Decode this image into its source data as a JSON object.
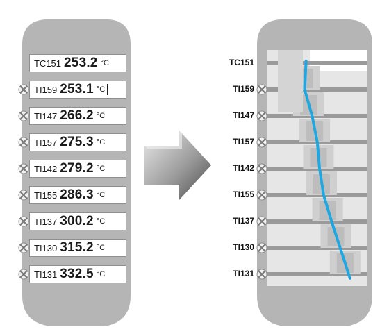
{
  "left_panel": {
    "readouts": [
      {
        "tag": "TC151",
        "value": "253.2",
        "unit": "°C",
        "nozzle": false
      },
      {
        "tag": "TI159",
        "value": "253.1",
        "unit": "°C",
        "nozzle": true
      },
      {
        "tag": "TI147",
        "value": "266.2",
        "unit": "°C",
        "nozzle": true
      },
      {
        "tag": "TI157",
        "value": "275.3",
        "unit": "°C",
        "nozzle": true
      },
      {
        "tag": "TI142",
        "value": "279.2",
        "unit": "°C",
        "nozzle": true
      },
      {
        "tag": "TI155",
        "value": "286.3",
        "unit": "°C",
        "nozzle": true
      },
      {
        "tag": "TI137",
        "value": "300.2",
        "unit": "°C",
        "nozzle": true
      },
      {
        "tag": "TI130",
        "value": "315.2",
        "unit": "°C",
        "nozzle": true
      },
      {
        "tag": "TI131",
        "value": "332.5",
        "unit": "°C",
        "nozzle": true
      }
    ]
  },
  "right_panel": {
    "labels": [
      "TC151",
      "TI159",
      "TI147",
      "TI157",
      "TI142",
      "TI155",
      "TI137",
      "TI130",
      "TI131"
    ]
  },
  "colors": {
    "column": "#b5b5b5",
    "arrow_dark": "#6e6e6e",
    "arrow_light": "#e2e2e2",
    "profile_line": "#1ea7e1",
    "tray_band": "#9a9a9a",
    "panel_bg": "#e6e6e6"
  },
  "chart_data": {
    "type": "line",
    "series": [
      {
        "x": [
          253.2,
          253.1,
          266.2,
          275.3,
          279.2,
          286.3,
          300.2,
          315.2,
          332.5
        ]
      }
    ],
    "categories": [
      "TC151",
      "TI159",
      "TI147",
      "TI157",
      "TI142",
      "TI155",
      "TI137",
      "TI130",
      "TI131"
    ]
  }
}
